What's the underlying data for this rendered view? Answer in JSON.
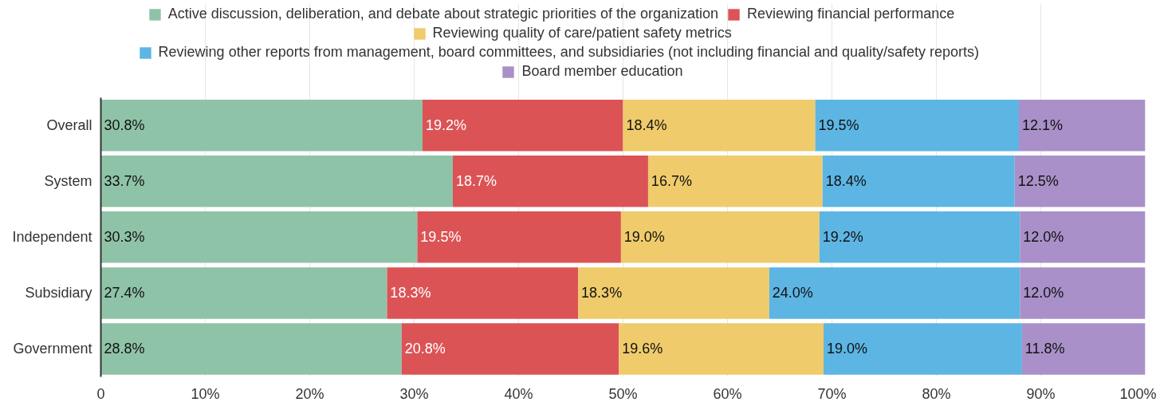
{
  "chart_data": {
    "type": "bar",
    "orientation": "horizontal",
    "stacked": true,
    "legend": "top",
    "grid": "x",
    "categories": [
      "Overall",
      "System",
      "Independent",
      "Subsidiary",
      "Government"
    ],
    "series": [
      {
        "name": "Active discussion, deliberation, and debate about strategic priorities of the organization",
        "color": "#8fc3a8",
        "values": [
          30.8,
          33.7,
          30.3,
          27.4,
          28.8
        ],
        "value_labels": [
          "30.8%",
          "33.7%",
          "30.3%",
          "27.4%",
          "28.8%"
        ]
      },
      {
        "name": "Reviewing financial performance",
        "color": "#dc5356",
        "values": [
          19.2,
          18.7,
          19.5,
          18.3,
          20.8
        ],
        "value_labels": [
          "19.2%",
          "18.7%",
          "19.5%",
          "18.3%",
          "20.8%"
        ]
      },
      {
        "name": "Reviewing quality of care/patient safety metrics",
        "color": "#efcb6b",
        "values": [
          18.4,
          16.7,
          19.0,
          18.3,
          19.6
        ],
        "value_labels": [
          "18.4%",
          "16.7%",
          "19.0%",
          "18.3%",
          "19.6%"
        ]
      },
      {
        "name": "Reviewing other reports from management, board committees, and subsidiaries (not including financial and quality/safety reports)",
        "color": "#5db5e3",
        "values": [
          19.5,
          18.4,
          19.2,
          24.0,
          19.0
        ],
        "value_labels": [
          "19.5%",
          "18.4%",
          "19.2%",
          "24.0%",
          "19.0%"
        ]
      },
      {
        "name": "Board member education",
        "color": "#a990c8",
        "values": [
          12.1,
          12.5,
          12.0,
          12.0,
          11.8
        ],
        "value_labels": [
          "12.1%",
          "12.5%",
          "12.0%",
          "12.0%",
          "11.8%"
        ]
      }
    ],
    "xlim": [
      0,
      100
    ],
    "xticks": [
      0,
      {
        "value": 10,
        "label": "10%"
      },
      {
        "value": 20,
        "label": "20%"
      },
      {
        "value": 30,
        "label": "30%"
      },
      {
        "value": 40,
        "label": "40%"
      },
      {
        "value": 50,
        "label": "50%"
      },
      {
        "value": 60,
        "label": "60%"
      },
      {
        "value": 70,
        "label": "70%"
      },
      {
        "value": 80,
        "label": "80%"
      },
      {
        "value": 90,
        "label": "90%"
      },
      {
        "value": 100,
        "label": "100%"
      }
    ]
  }
}
